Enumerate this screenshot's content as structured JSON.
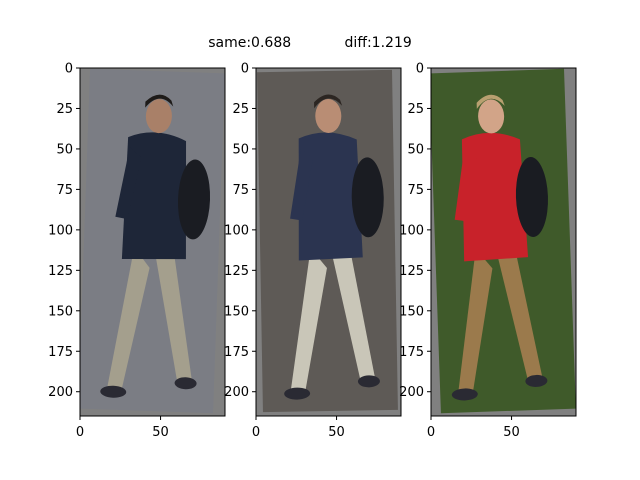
{
  "figure": {
    "title": "same:0.688            diff:1.219"
  },
  "chart_data": [
    {
      "type": "image",
      "panel": "person-image-1",
      "xlim": [
        0,
        90
      ],
      "ylim": [
        215,
        0
      ],
      "x_ticks": [
        0,
        50
      ],
      "y_ticks": [
        0,
        25,
        50,
        75,
        100,
        125,
        150,
        175,
        200
      ],
      "palette": {
        "pad": "#808080",
        "bg": "#7b7d84",
        "jacket": "#1e2638",
        "pants": "#a49f8d",
        "skin": "#a98068",
        "hair": "#1e1b19"
      }
    },
    {
      "type": "image",
      "panel": "person-image-2",
      "xlim": [
        0,
        90
      ],
      "ylim": [
        215,
        0
      ],
      "x_ticks": [
        0,
        50
      ],
      "y_ticks": [
        0,
        25,
        50,
        75,
        100,
        125,
        150,
        175,
        200
      ],
      "palette": {
        "pad": "#808080",
        "bg": "#5e5a56",
        "jacket": "#2b3450",
        "pants": "#c9c6b8",
        "skin": "#b98d74",
        "hair": "#2c2622"
      }
    },
    {
      "type": "image",
      "panel": "person-image-3",
      "xlim": [
        0,
        90
      ],
      "ylim": [
        215,
        0
      ],
      "x_ticks": [
        0,
        50
      ],
      "y_ticks": [
        0,
        25,
        50,
        75,
        100,
        125,
        150,
        175,
        200
      ],
      "palette": {
        "pad": "#808080",
        "bg": "#3f5a2a",
        "jacket": "#c8222a",
        "pants": "#9b7a4c",
        "skin": "#d2a488",
        "hair": "#b8a070"
      }
    }
  ]
}
